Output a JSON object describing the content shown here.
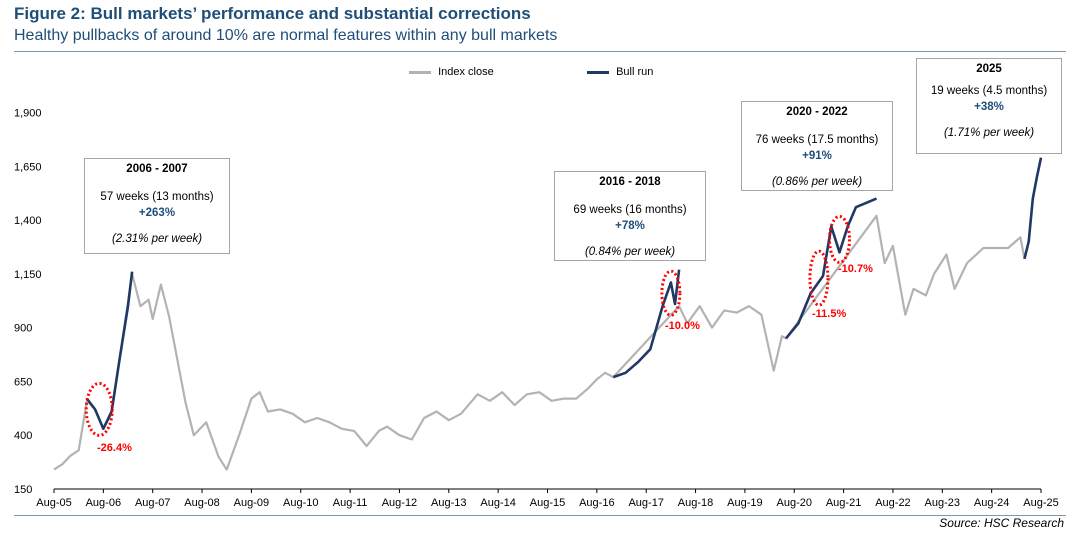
{
  "title": "Figure 2: Bull markets’ performance and substantial corrections",
  "subtitle": "Healthy pullbacks of around 10% are normal features within any bull markets",
  "source": "Source: HSC Research",
  "colors": {
    "index": "#b3b3b3",
    "bull": "#1f3864",
    "title": "#1f4e79",
    "correction": "#ff0000"
  },
  "chart_data": {
    "type": "line",
    "xlabel": "",
    "ylabel": "",
    "ylim": [
      150,
      1900
    ],
    "yticks": [
      150,
      400,
      650,
      900,
      1150,
      1400,
      1650,
      1900
    ],
    "ytick_labels": [
      "150",
      "400",
      "650",
      "900",
      "1,150",
      "1,400",
      "1,650",
      "1,900"
    ],
    "xlim": [
      "2005-08",
      "2025-08"
    ],
    "xtick_labels": [
      "Aug-05",
      "Aug-06",
      "Aug-07",
      "Aug-08",
      "Aug-09",
      "Aug-10",
      "Aug-11",
      "Aug-12",
      "Aug-13",
      "Aug-14",
      "Aug-15",
      "Aug-16",
      "Aug-17",
      "Aug-18",
      "Aug-19",
      "Aug-20",
      "Aug-21",
      "Aug-22",
      "Aug-23",
      "Aug-24",
      "Aug-25"
    ],
    "grid": false,
    "legend": "top-center",
    "series": [
      {
        "name": "Index close",
        "color": "#b3b3b3",
        "points": [
          [
            "2005-08",
            240
          ],
          [
            "2005-10",
            265
          ],
          [
            "2005-12",
            305
          ],
          [
            "2006-02",
            330
          ],
          [
            "2006-04",
            560
          ],
          [
            "2006-06",
            520
          ],
          [
            "2006-08",
            430
          ],
          [
            "2006-10",
            500
          ],
          [
            "2006-12",
            760
          ],
          [
            "2007-03",
            1150
          ],
          [
            "2007-05",
            1000
          ],
          [
            "2007-07",
            1030
          ],
          [
            "2007-08",
            940
          ],
          [
            "2007-10",
            1100
          ],
          [
            "2007-12",
            950
          ],
          [
            "2008-02",
            750
          ],
          [
            "2008-04",
            550
          ],
          [
            "2008-06",
            400
          ],
          [
            "2008-09",
            460
          ],
          [
            "2008-12",
            300
          ],
          [
            "2009-02",
            240
          ],
          [
            "2009-05",
            400
          ],
          [
            "2009-08",
            570
          ],
          [
            "2009-10",
            600
          ],
          [
            "2009-12",
            510
          ],
          [
            "2010-03",
            520
          ],
          [
            "2010-06",
            500
          ],
          [
            "2010-09",
            460
          ],
          [
            "2010-12",
            480
          ],
          [
            "2011-03",
            460
          ],
          [
            "2011-06",
            430
          ],
          [
            "2011-09",
            420
          ],
          [
            "2011-12",
            350
          ],
          [
            "2012-03",
            420
          ],
          [
            "2012-05",
            440
          ],
          [
            "2012-08",
            400
          ],
          [
            "2012-11",
            380
          ],
          [
            "2013-02",
            480
          ],
          [
            "2013-05",
            510
          ],
          [
            "2013-08",
            470
          ],
          [
            "2013-11",
            500
          ],
          [
            "2014-03",
            590
          ],
          [
            "2014-06",
            560
          ],
          [
            "2014-09",
            600
          ],
          [
            "2014-12",
            540
          ],
          [
            "2015-03",
            590
          ],
          [
            "2015-06",
            600
          ],
          [
            "2015-09",
            560
          ],
          [
            "2015-12",
            570
          ],
          [
            "2016-03",
            570
          ],
          [
            "2016-06",
            620
          ],
          [
            "2016-08",
            660
          ],
          [
            "2016-10",
            690
          ],
          [
            "2016-12",
            670
          ],
          [
            "2018-04",
            1000
          ],
          [
            "2018-06",
            920
          ],
          [
            "2018-09",
            1000
          ],
          [
            "2018-12",
            900
          ],
          [
            "2019-03",
            980
          ],
          [
            "2019-06",
            970
          ],
          [
            "2019-09",
            1000
          ],
          [
            "2019-12",
            960
          ],
          [
            "2020-03",
            700
          ],
          [
            "2020-05",
            860
          ],
          [
            "2020-06",
            850
          ],
          [
            "2022-04",
            1420
          ],
          [
            "2022-06",
            1200
          ],
          [
            "2022-08",
            1280
          ],
          [
            "2022-11",
            960
          ],
          [
            "2023-01",
            1080
          ],
          [
            "2023-04",
            1050
          ],
          [
            "2023-06",
            1150
          ],
          [
            "2023-09",
            1240
          ],
          [
            "2023-11",
            1080
          ],
          [
            "2024-02",
            1200
          ],
          [
            "2024-06",
            1270
          ],
          [
            "2024-09",
            1270
          ],
          [
            "2024-12",
            1270
          ],
          [
            "2025-03",
            1320
          ],
          [
            "2025-04",
            1220
          ]
        ]
      },
      {
        "name": "Bull run",
        "color": "#1f3864",
        "segments": [
          [
            [
              "2006-04",
              570
            ],
            [
              "2006-06",
              520
            ],
            [
              "2006-08",
              430
            ],
            [
              "2006-10",
              510
            ],
            [
              "2006-12",
              760
            ],
            [
              "2007-02",
              1000
            ],
            [
              "2007-03",
              1160
            ]
          ],
          [
            [
              "2016-12",
              670
            ],
            [
              "2017-03",
              690
            ],
            [
              "2017-06",
              740
            ],
            [
              "2017-09",
              800
            ],
            [
              "2017-12",
              1000
            ],
            [
              "2018-02",
              1110
            ],
            [
              "2018-03",
              1010
            ],
            [
              "2018-04",
              1170
            ]
          ],
          [
            [
              "2020-06",
              850
            ],
            [
              "2020-09",
              920
            ],
            [
              "2020-12",
              1060
            ],
            [
              "2021-03",
              1140
            ],
            [
              "2021-05",
              1370
            ],
            [
              "2021-07",
              1250
            ],
            [
              "2021-09",
              1370
            ],
            [
              "2021-11",
              1460
            ],
            [
              "2022-04",
              1500
            ]
          ],
          [
            [
              "2025-04",
              1220
            ],
            [
              "2025-05",
              1300
            ],
            [
              "2025-06",
              1500
            ],
            [
              "2025-07",
              1600
            ],
            [
              "2025-08",
              1690
            ]
          ]
        ]
      }
    ],
    "annotations": [
      {
        "title": "2006 - 2007",
        "duration": "57 weeks (13 months)",
        "gain": "+263%",
        "rate": "(2.31% per week)"
      },
      {
        "title": "2016 - 2018",
        "duration": "69 weeks (16 months)",
        "gain": "+78%",
        "rate": "(0.84% per week)"
      },
      {
        "title": "2020 - 2022",
        "duration": "76 weeks (17.5 months)",
        "gain": "+91%",
        "rate": "(0.86% per week)"
      },
      {
        "title": "2025",
        "duration": "19 weeks (4.5 months)",
        "gain": "+38%",
        "rate": "(1.71% per week)"
      }
    ],
    "corrections": [
      "-26.4%",
      "-10.0%",
      "-11.5%",
      "-10.7%"
    ]
  }
}
